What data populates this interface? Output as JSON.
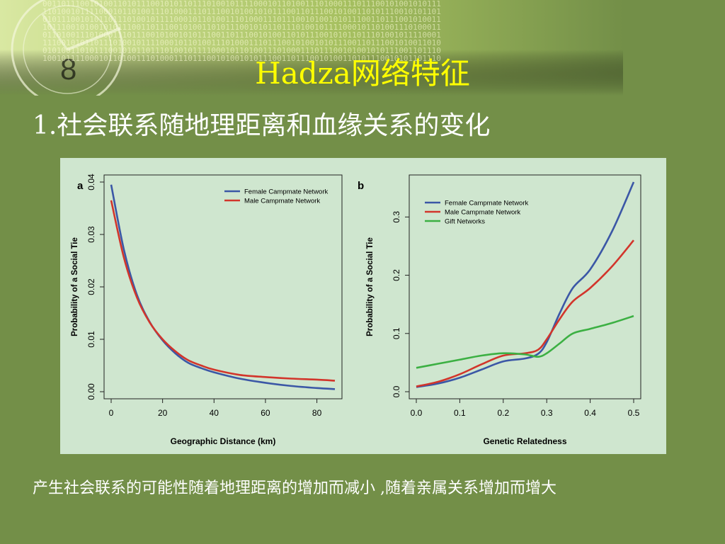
{
  "slide": {
    "title": "Hadza网络特征",
    "subtitle": "1.社会联系随地理距离和血缘关系的变化",
    "footer": "产生社会联系的可能性随着地理距离的增加而减小 ,随着亲属关系增加而增大"
  },
  "colors": {
    "background": "#738f48",
    "title": "#ffff00",
    "text": "#ffffff",
    "figure_bg": "#cfe6cf",
    "female": "#3b57a6",
    "male": "#d2352b",
    "gift": "#3cb043"
  },
  "chart_data": [
    {
      "panel": "a",
      "type": "line",
      "xlabel": "Geographic Distance (km)",
      "ylabel": "Probability of a Social Tie",
      "xlim": [
        0,
        87
      ],
      "ylim": [
        0,
        0.04
      ],
      "xticks": [
        0,
        20,
        40,
        60,
        80
      ],
      "xtick_labels": [
        "0",
        "20",
        "40",
        "60",
        "80"
      ],
      "yticks": [
        0,
        0.01,
        0.02,
        0.03,
        0.04
      ],
      "ytick_labels": [
        "0.00",
        "0.01",
        "0.02",
        "0.03",
        "0.04"
      ],
      "legend_position": "top-right",
      "x": [
        0,
        5,
        10,
        15,
        20,
        25,
        30,
        35,
        40,
        50,
        60,
        70,
        80,
        87
      ],
      "series": [
        {
          "name": "Female Campmate Network",
          "color": "#3b57a6",
          "values": [
            0.0395,
            0.027,
            0.0185,
            0.0133,
            0.0098,
            0.0073,
            0.0055,
            0.0045,
            0.0037,
            0.0025,
            0.0017,
            0.0011,
            0.0007,
            0.0005
          ]
        },
        {
          "name": "Male Campmate Network",
          "color": "#d2352b",
          "values": [
            0.0365,
            0.0255,
            0.018,
            0.0132,
            0.01,
            0.0077,
            0.006,
            0.005,
            0.0042,
            0.0032,
            0.0028,
            0.0025,
            0.0023,
            0.0021
          ]
        }
      ]
    },
    {
      "panel": "b",
      "type": "line",
      "xlabel": "Genetic Relatedness",
      "ylabel": "Probability of a Social Tie",
      "xlim": [
        0,
        0.5
      ],
      "ylim": [
        0,
        0.36
      ],
      "xticks": [
        0,
        0.1,
        0.2,
        0.3,
        0.4,
        0.5
      ],
      "xtick_labels": [
        "0.0",
        "0.1",
        "0.2",
        "0.3",
        "0.4",
        "0.5"
      ],
      "yticks": [
        0,
        0.1,
        0.2,
        0.3
      ],
      "ytick_labels": [
        "0.0",
        "0.1",
        "0.2",
        "0.3"
      ],
      "legend_position": "top-left",
      "x": [
        0,
        0.05,
        0.1,
        0.15,
        0.2,
        0.25,
        0.28,
        0.3,
        0.33,
        0.36,
        0.4,
        0.45,
        0.5
      ],
      "series": [
        {
          "name": "Female Campmate Network",
          "color": "#3b57a6",
          "values": [
            0.008,
            0.014,
            0.024,
            0.038,
            0.052,
            0.057,
            0.065,
            0.085,
            0.135,
            0.178,
            0.21,
            0.275,
            0.36
          ]
        },
        {
          "name": "Male Campmate Network",
          "color": "#d2352b",
          "values": [
            0.009,
            0.017,
            0.03,
            0.047,
            0.062,
            0.066,
            0.072,
            0.09,
            0.125,
            0.155,
            0.178,
            0.215,
            0.26
          ]
        },
        {
          "name": "Gift Networks",
          "color": "#3cb043",
          "values": [
            0.041,
            0.048,
            0.055,
            0.062,
            0.066,
            0.064,
            0.06,
            0.066,
            0.083,
            0.1,
            0.108,
            0.118,
            0.13
          ]
        }
      ]
    }
  ]
}
